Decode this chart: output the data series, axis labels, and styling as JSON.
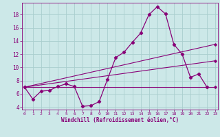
{
  "xlabel": "Windchill (Refroidissement éolien,°C)",
  "background_color": "#cce8e8",
  "grid_color": "#aacece",
  "line_color": "#880077",
  "main_x": [
    0,
    1,
    2,
    3,
    4,
    5,
    6,
    7,
    8,
    9,
    10,
    11,
    12,
    13,
    14,
    15,
    16,
    17,
    18,
    19,
    20,
    21,
    22
  ],
  "main_y": [
    7.0,
    5.2,
    6.4,
    6.5,
    7.1,
    7.5,
    7.1,
    4.1,
    4.2,
    4.8,
    8.2,
    11.5,
    12.3,
    13.8,
    15.2,
    18.0,
    19.2,
    18.1,
    13.5,
    12.0,
    8.5,
    9.0,
    7.0
  ],
  "line1_x": [
    0,
    23
  ],
  "line1_y": [
    7.0,
    7.0
  ],
  "line2_x": [
    0,
    23
  ],
  "line2_y": [
    7.0,
    11.0
  ],
  "line3_x": [
    0,
    23
  ],
  "line3_y": [
    7.0,
    13.5
  ],
  "xlim": [
    -0.3,
    23.3
  ],
  "ylim": [
    3.6,
    19.8
  ],
  "yticks": [
    4,
    6,
    8,
    10,
    12,
    14,
    16,
    18
  ],
  "xticks": [
    0,
    1,
    2,
    3,
    4,
    5,
    6,
    7,
    8,
    9,
    10,
    11,
    12,
    13,
    14,
    15,
    16,
    17,
    18,
    19,
    20,
    21,
    22,
    23
  ],
  "figsize": [
    3.2,
    2.0
  ],
  "dpi": 100
}
